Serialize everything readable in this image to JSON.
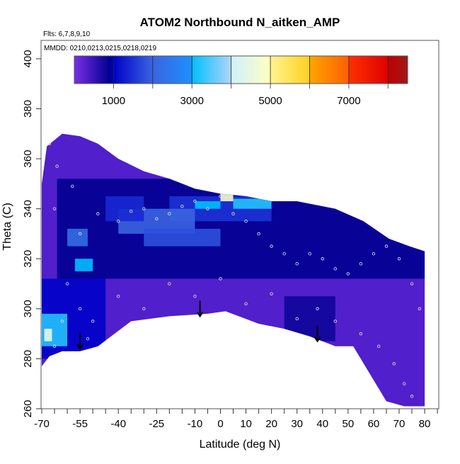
{
  "chart_data": {
    "type": "heatmap",
    "title": "ATOM2 Northbound N_aitken_AMP",
    "subtitle_flights": "Flts: 6,7,8,9,10",
    "subtitle_dates": "MMDD: 0210,0213,0215,0218,0219",
    "xlabel": "Latitude (deg N)",
    "ylabel": "Theta (C)",
    "xlim": [
      -70,
      85.6
    ],
    "ylim": [
      260,
      407.5
    ],
    "xticks": [
      -70,
      -55,
      -40,
      -25,
      -10,
      0,
      10,
      20,
      30,
      40,
      50,
      60,
      70,
      80
    ],
    "xminor_step": 5,
    "yticks": [
      260,
      280,
      300,
      320,
      340,
      360,
      380,
      400
    ],
    "colorbar": {
      "range": [
        0,
        8500
      ],
      "tick_labels": [
        "1000",
        "3000",
        "5000",
        "7000"
      ],
      "tick_values": [
        1000,
        3000,
        5000,
        7000
      ],
      "divisions": [
        1000,
        2000,
        3000,
        4000,
        5000,
        6000,
        7000,
        8000
      ],
      "stops": [
        {
          "v": 0,
          "c": "#7a2ee8"
        },
        {
          "v": 900,
          "c": "#000090"
        },
        {
          "v": 1000,
          "c": "#0000c8"
        },
        {
          "v": 2000,
          "c": "#3a64e0"
        },
        {
          "v": 2999,
          "c": "#1e90ff"
        },
        {
          "v": 3000,
          "c": "#00bfff"
        },
        {
          "v": 3999,
          "c": "#b0d4f8"
        },
        {
          "v": 4000,
          "c": "#d0f0ff"
        },
        {
          "v": 4999,
          "c": "#ffffc0"
        },
        {
          "v": 5000,
          "c": "#fff490"
        },
        {
          "v": 5999,
          "c": "#ffd020"
        },
        {
          "v": 6000,
          "c": "#ffa500"
        },
        {
          "v": 6999,
          "c": "#ff6000"
        },
        {
          "v": 7000,
          "c": "#ff3000"
        },
        {
          "v": 7999,
          "c": "#e00000"
        },
        {
          "v": 8000,
          "c": "#c00000"
        },
        {
          "v": 8500,
          "c": "#a01818"
        }
      ]
    },
    "domain_outline": [
      [
        -70,
        277
      ],
      [
        -67,
        281
      ],
      [
        -62,
        283
      ],
      [
        -55,
        283
      ],
      [
        -48,
        285
      ],
      [
        -35,
        295
      ],
      [
        -20,
        297
      ],
      [
        -5,
        298
      ],
      [
        2,
        299
      ],
      [
        15,
        294
      ],
      [
        25,
        292
      ],
      [
        35,
        289
      ],
      [
        45,
        285
      ],
      [
        52,
        285
      ],
      [
        65,
        263
      ],
      [
        72,
        261
      ],
      [
        80,
        261
      ],
      [
        80,
        323
      ],
      [
        74,
        325
      ],
      [
        66,
        328
      ],
      [
        56,
        335
      ],
      [
        45,
        340
      ],
      [
        30,
        343
      ],
      [
        20,
        343
      ],
      [
        10,
        345
      ],
      [
        0,
        346
      ],
      [
        -10,
        348
      ],
      [
        -20,
        352
      ],
      [
        -30,
        355
      ],
      [
        -40,
        360
      ],
      [
        -48,
        366
      ],
      [
        -55,
        369
      ],
      [
        -62,
        370
      ],
      [
        -68,
        365
      ],
      [
        -70,
        350
      ]
    ],
    "background_value": 300,
    "cells": [
      [
        -64,
        80,
        312,
        352,
        900
      ],
      [
        -70,
        -45,
        280,
        312,
        1000
      ],
      [
        25,
        45,
        287,
        305,
        800
      ],
      [
        -20,
        20,
        335,
        345,
        1500
      ],
      [
        -40,
        -10,
        330,
        340,
        2000
      ],
      [
        -30,
        0,
        325,
        332,
        1800
      ],
      [
        -10,
        0,
        340,
        343,
        3000
      ],
      [
        0,
        5,
        343,
        346,
        4800
      ],
      [
        5,
        20,
        340,
        344,
        3200
      ],
      [
        -57,
        -50,
        315,
        320,
        3000
      ],
      [
        -70,
        -60,
        285,
        298,
        3200
      ],
      [
        -69,
        -66,
        287,
        292,
        4500
      ],
      [
        -45,
        -30,
        335,
        345,
        1400
      ],
      [
        -60,
        -52,
        325,
        332,
        2200
      ]
    ],
    "flight_points": [
      [
        -67,
        366
      ],
      [
        -64,
        357
      ],
      [
        -58,
        349
      ],
      [
        -65,
        340
      ],
      [
        -55,
        330
      ],
      [
        -48,
        338
      ],
      [
        -40,
        335
      ],
      [
        -35,
        339
      ],
      [
        -30,
        340
      ],
      [
        -25,
        336
      ],
      [
        -20,
        338
      ],
      [
        -15,
        341
      ],
      [
        -10,
        343
      ],
      [
        -5,
        340
      ],
      [
        0,
        345
      ],
      [
        5,
        338
      ],
      [
        10,
        335
      ],
      [
        15,
        330
      ],
      [
        20,
        325
      ],
      [
        25,
        322
      ],
      [
        30,
        318
      ],
      [
        35,
        322
      ],
      [
        40,
        320
      ],
      [
        45,
        316
      ],
      [
        50,
        314
      ],
      [
        55,
        318
      ],
      [
        60,
        322
      ],
      [
        65,
        325
      ],
      [
        70,
        320
      ],
      [
        75,
        310
      ],
      [
        78,
        300
      ],
      [
        -60,
        310
      ],
      [
        -55,
        300
      ],
      [
        -50,
        295
      ],
      [
        -40,
        305
      ],
      [
        -30,
        300
      ],
      [
        -20,
        310
      ],
      [
        -10,
        305
      ],
      [
        0,
        312
      ],
      [
        10,
        302
      ],
      [
        20,
        306
      ],
      [
        30,
        296
      ],
      [
        38,
        300
      ],
      [
        45,
        295
      ],
      [
        55,
        290
      ],
      [
        62,
        285
      ],
      [
        68,
        278
      ],
      [
        72,
        270
      ],
      [
        75,
        265
      ],
      [
        -68,
        290
      ],
      [
        -65,
        285
      ],
      [
        -62,
        295
      ],
      [
        -52,
        288
      ]
    ],
    "arrows": [
      [
        -55,
        284
      ],
      [
        -8,
        297
      ],
      [
        38,
        287
      ]
    ]
  }
}
